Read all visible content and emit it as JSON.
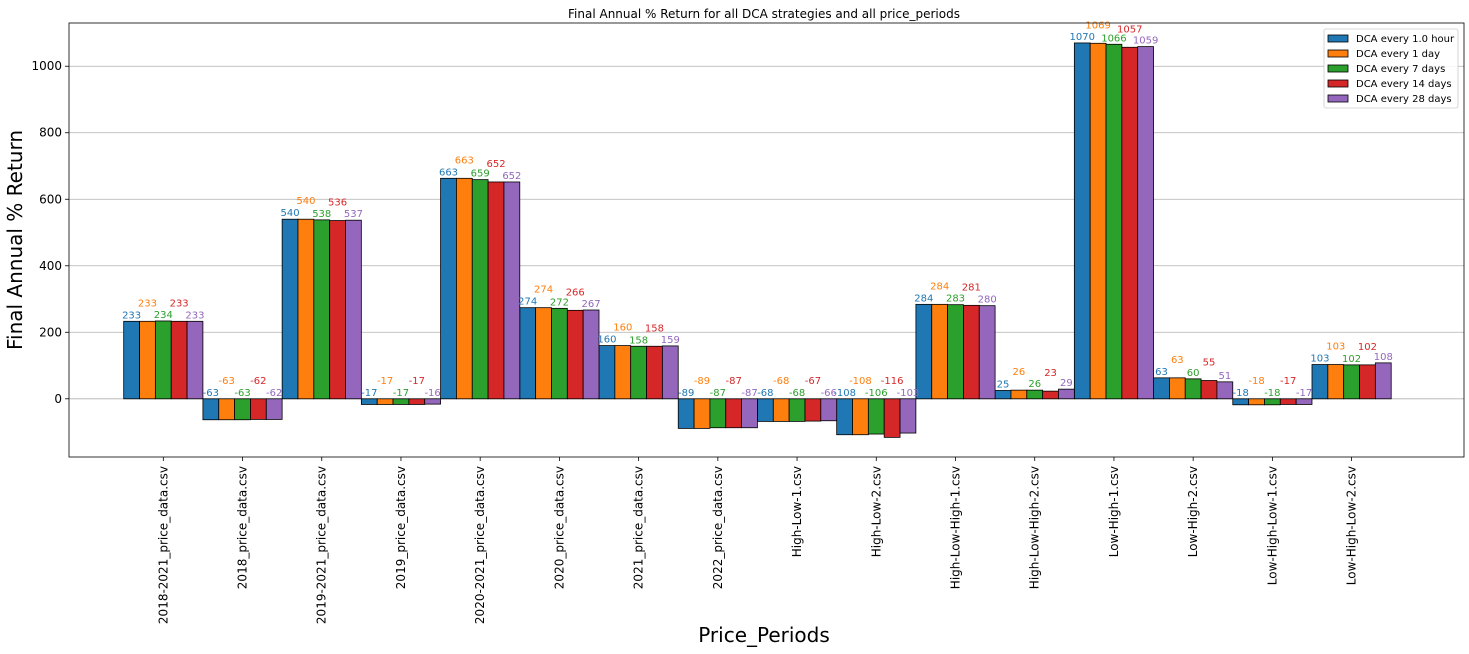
{
  "chart_data": {
    "type": "bar",
    "title": "Final Annual % Return for all DCA strategies and all price_periods",
    "xlabel": "Price_Periods",
    "ylabel": "Final Annual % Return",
    "ylim": [
      -175,
      1130
    ],
    "yticks": [
      0,
      200,
      400,
      600,
      800,
      1000
    ],
    "grid": "horizontal",
    "legend_position": "top-right",
    "categories": [
      "2018-2021_price_data.csv",
      "2018_price_data.csv",
      "2019-2021_price_data.csv",
      "2019_price_data.csv",
      "2020-2021_price_data.csv",
      "2020_price_data.csv",
      "2021_price_data.csv",
      "2022_price_data.csv",
      "High-Low-1.csv",
      "High-Low-2.csv",
      "High-Low-High-1.csv",
      "High-Low-High-2.csv",
      "Low-High-1.csv",
      "Low-High-2.csv",
      "Low-High-Low-1.csv",
      "Low-High-Low-2.csv"
    ],
    "series": [
      {
        "name": "DCA every 1.0 hour",
        "color": "#1f77b4",
        "values": [
          233,
          -63,
          540,
          -17,
          663,
          274,
          160,
          -89,
          -68,
          -108,
          284,
          25,
          1070,
          63,
          -18,
          103
        ]
      },
      {
        "name": "DCA every 1 day",
        "color": "#ff7f0e",
        "values": [
          233,
          -63,
          540,
          -17,
          663,
          274,
          160,
          -89,
          -68,
          -108,
          284,
          26,
          1069,
          63,
          -18,
          103
        ]
      },
      {
        "name": "DCA every 7 days",
        "color": "#2ca02c",
        "values": [
          234,
          -63,
          538,
          -17,
          659,
          272,
          158,
          -87,
          -68,
          -106,
          283,
          26,
          1066,
          60,
          -18,
          102
        ]
      },
      {
        "name": "DCA every 14 days",
        "color": "#d62728",
        "values": [
          233,
          -62,
          536,
          -17,
          652,
          266,
          158,
          -87,
          -67,
          -116,
          281,
          23,
          1057,
          55,
          -17,
          102
        ]
      },
      {
        "name": "DCA every 28 days",
        "color": "#9467bd",
        "values": [
          233,
          -62,
          537,
          -16,
          652,
          267,
          159,
          -87,
          -66,
          -103,
          280,
          29,
          1059,
          51,
          -17,
          108
        ]
      }
    ]
  }
}
